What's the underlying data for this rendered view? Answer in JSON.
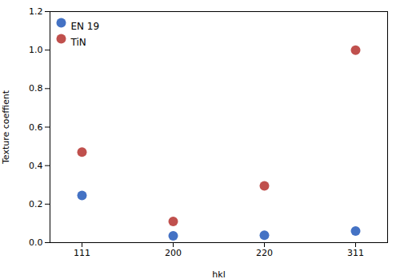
{
  "chart_data": {
    "type": "scatter",
    "categories": [
      "111",
      "200",
      "220",
      "311"
    ],
    "series": [
      {
        "name": "EN 19",
        "color": "#4472C4",
        "values": [
          0.245,
          0.035,
          0.038,
          0.06
        ]
      },
      {
        "name": "TiN",
        "color": "#C0504D",
        "values": [
          0.47,
          0.11,
          0.295,
          1.0
        ]
      }
    ],
    "xlabel": "hkl",
    "ylabel": "Texture coeffient",
    "ylim": [
      0,
      1.2
    ],
    "yticks": [
      {
        "value": 0,
        "label": "0.0"
      },
      0.2,
      0.4,
      0.6,
      0.8,
      {
        "value": 1.0,
        "label": "1.0"
      },
      1.2
    ],
    "legend": "upper left",
    "grid": false
  }
}
